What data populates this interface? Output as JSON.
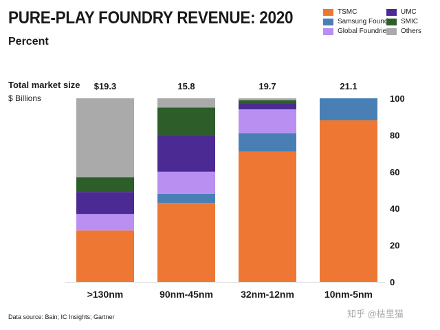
{
  "title": "PURE-PLAY FOUNDRY REVENUE: 2020",
  "subtitle": "Percent",
  "market_label": "Total market size",
  "market_unit": "$ Billions",
  "footer": "Data source: Bain; IC Insights; Gartner",
  "watermark": "知乎 @桔里猫",
  "legend": [
    {
      "name": "TSMC",
      "color": "#ee7733"
    },
    {
      "name": "UMC",
      "color": "#4b2a93"
    },
    {
      "name": "Samsung Foundry",
      "color": "#4a7fb5"
    },
    {
      "name": "SMIC",
      "color": "#2d5e2a"
    },
    {
      "name": "Global Foundries",
      "color": "#b98ff2"
    },
    {
      "name": "Others",
      "color": "#aaaaaa"
    }
  ],
  "chart_data": {
    "type": "bar",
    "stacked": true,
    "title": "PURE-PLAY FOUNDRY REVENUE: 2020",
    "ylabel": "Percent",
    "ylim": [
      0,
      100
    ],
    "yticks": [
      0,
      20,
      40,
      60,
      80,
      100
    ],
    "y_axis_side": "right",
    "categories": [
      ">130nm",
      "90nm-45nm",
      "32nm-12nm",
      "10nm-5nm"
    ],
    "market_size": [
      "$19.3",
      "15.8",
      "19.7",
      "21.1"
    ],
    "series": [
      {
        "name": "TSMC",
        "color": "#ee7733",
        "values": [
          28,
          43,
          71,
          88
        ]
      },
      {
        "name": "Samsung Foundry",
        "color": "#4a7fb5",
        "values": [
          0,
          5,
          10,
          12
        ]
      },
      {
        "name": "Global Foundries",
        "color": "#b98ff2",
        "values": [
          9,
          12,
          13,
          0
        ]
      },
      {
        "name": "UMC",
        "color": "#4b2a93",
        "values": [
          12,
          20,
          3,
          0
        ]
      },
      {
        "name": "SMIC",
        "color": "#2d5e2a",
        "values": [
          8,
          15,
          2,
          0
        ]
      },
      {
        "name": "Others",
        "color": "#aaaaaa",
        "values": [
          43,
          5,
          1,
          0
        ]
      }
    ],
    "source": "Bain; IC Insights; Gartner"
  }
}
